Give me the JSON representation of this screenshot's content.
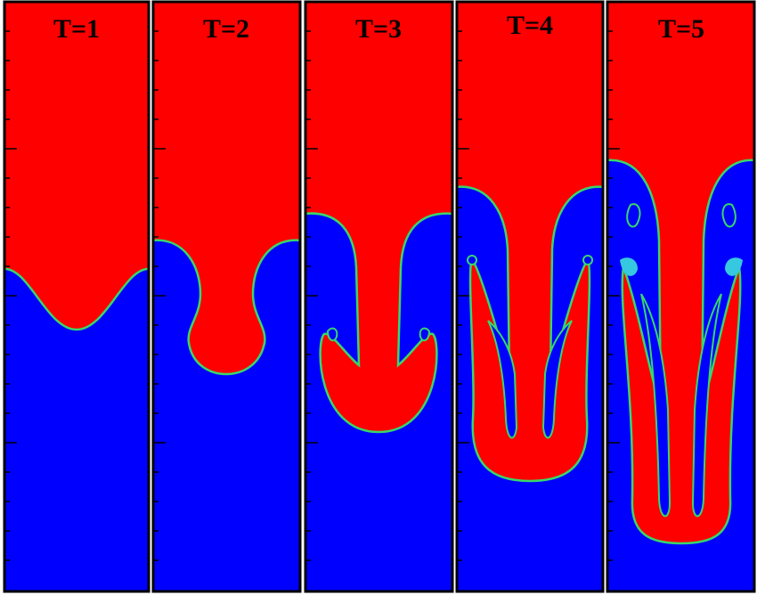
{
  "panels": [
    {
      "label": "T=1"
    },
    {
      "label": "T=2"
    },
    {
      "label": "T=3"
    },
    {
      "label": "T=4"
    },
    {
      "label": "T=5"
    }
  ]
}
